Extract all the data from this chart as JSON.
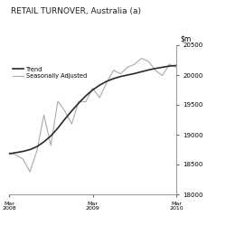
{
  "title": "RETAIL TURNOVER, Australia (a)",
  "ylim": [
    18000,
    20500
  ],
  "yticks": [
    18000,
    18500,
    19000,
    19500,
    20000,
    20500
  ],
  "background_color": "#ffffff",
  "trend_color": "#2a2a2a",
  "seasonal_color": "#aaaaaa",
  "trend_label": "Trend",
  "seasonal_label": "Seasonally Adjusted",
  "months": [
    0,
    1,
    2,
    3,
    4,
    5,
    6,
    7,
    8,
    9,
    10,
    11,
    12,
    13,
    14,
    15,
    16,
    17,
    18,
    19,
    20,
    21,
    22,
    23,
    24
  ],
  "trend_values": [
    18680,
    18700,
    18720,
    18750,
    18800,
    18880,
    18980,
    19110,
    19260,
    19400,
    19530,
    19650,
    19750,
    19830,
    19895,
    19940,
    19975,
    20000,
    20025,
    20055,
    20085,
    20110,
    20130,
    20150,
    20160
  ],
  "seasonal_values": [
    18700,
    18660,
    18590,
    18380,
    18730,
    19330,
    18820,
    19560,
    19400,
    19180,
    19560,
    19550,
    19780,
    19620,
    19870,
    20080,
    20020,
    20130,
    20180,
    20280,
    20230,
    20080,
    19990,
    20180,
    20130
  ],
  "xtick_positions": [
    0,
    12,
    24
  ],
  "xtick_labels": [
    "Mar\n2008",
    "Mar\n2009",
    "Mar\n2010"
  ]
}
